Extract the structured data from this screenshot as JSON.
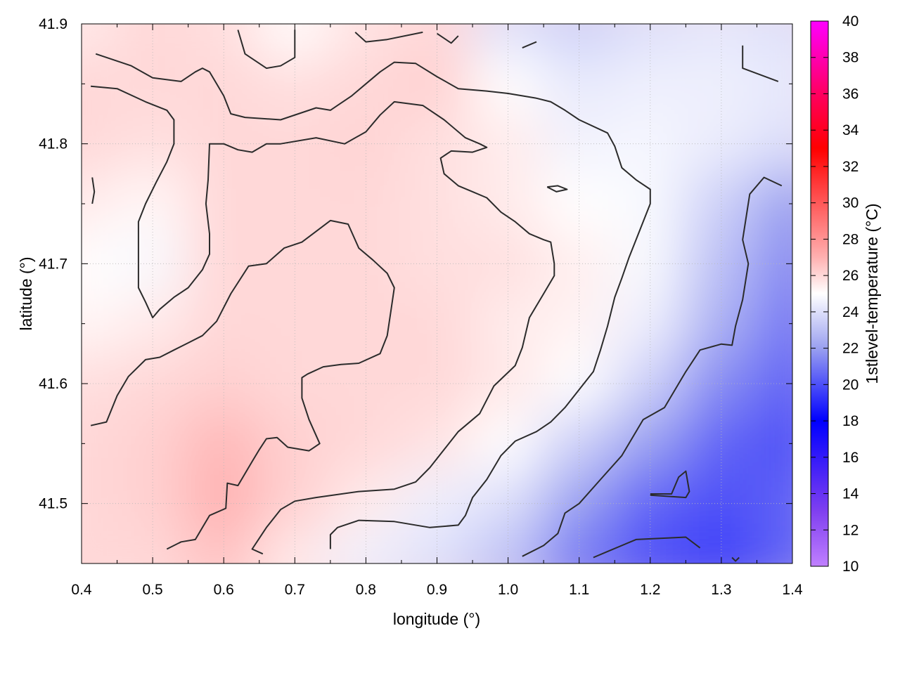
{
  "chart_data": {
    "type": "heatmap",
    "title": "",
    "xlabel": "longitude (°)",
    "ylabel": "latitude (°)",
    "colorbar_label": "1stlevel-temperature (°C)",
    "xlim": [
      0.4,
      1.4
    ],
    "ylim": [
      41.45,
      41.9
    ],
    "x_ticks": [
      0.4,
      0.5,
      0.6,
      0.7,
      0.8,
      0.9,
      1.0,
      1.1,
      1.2,
      1.3,
      1.4
    ],
    "x_tick_labels": [
      "0.4",
      "0.5",
      "0.6",
      "0.7",
      "0.8",
      "0.9",
      "1.0",
      "1.1",
      "1.2",
      "1.3",
      "1.4"
    ],
    "y_ticks": [
      41.5,
      41.6,
      41.7,
      41.8,
      41.9
    ],
    "y_tick_labels": [
      "41.5",
      "41.6",
      "41.7",
      "41.8",
      "41.9"
    ],
    "colorbar_range": [
      10,
      40
    ],
    "colorbar_ticks": [
      10,
      12,
      14,
      16,
      18,
      20,
      22,
      24,
      26,
      28,
      30,
      32,
      34,
      36,
      38,
      40
    ],
    "colorbar_tick_labels": [
      "10",
      "12",
      "14",
      "16",
      "18",
      "20",
      "22",
      "24",
      "26",
      "28",
      "30",
      "32",
      "34",
      "36",
      "38",
      "40"
    ],
    "colorscale": [
      {
        "value": 10,
        "color": "#c080ff"
      },
      {
        "value": 13,
        "color": "#8040f0"
      },
      {
        "value": 18,
        "color": "#0000ff"
      },
      {
        "value": 22,
        "color": "#9aa0f0"
      },
      {
        "value": 25,
        "color": "#ffffff"
      },
      {
        "value": 27,
        "color": "#ffb0b0"
      },
      {
        "value": 33,
        "color": "#ff0000"
      },
      {
        "value": 36,
        "color": "#ff0060"
      },
      {
        "value": 40,
        "color": "#ff00ff"
      }
    ],
    "grid": true,
    "temperature_field": {
      "x_centers": [
        0.4,
        0.5,
        0.6,
        0.7,
        0.8,
        0.9,
        1.0,
        1.1,
        1.2,
        1.3,
        1.4
      ],
      "y_centers": [
        41.9,
        41.85,
        41.8,
        41.75,
        41.7,
        41.65,
        41.6,
        41.55,
        41.5,
        41.45
      ],
      "values": [
        [
          25.5,
          26.0,
          25.8,
          25.0,
          25.7,
          26.0,
          24.0,
          23.5,
          24.0,
          24.2,
          24.0
        ],
        [
          26.0,
          26.0,
          26.0,
          25.8,
          26.0,
          26.2,
          25.0,
          24.3,
          24.5,
          24.5,
          24.3
        ],
        [
          26.0,
          25.8,
          26.0,
          26.0,
          26.1,
          25.8,
          25.5,
          24.6,
          24.7,
          24.4,
          24.0
        ],
        [
          25.5,
          25.2,
          26.0,
          26.0,
          26.0,
          25.8,
          25.5,
          25.0,
          24.8,
          23.5,
          22.0
        ],
        [
          25.0,
          24.8,
          26.0,
          26.0,
          26.0,
          25.8,
          25.8,
          25.4,
          24.8,
          23.0,
          21.5
        ],
        [
          25.2,
          25.5,
          26.0,
          26.0,
          26.0,
          26.0,
          25.5,
          25.3,
          24.5,
          22.5,
          21.0
        ],
        [
          25.8,
          26.0,
          26.2,
          26.0,
          26.0,
          26.0,
          25.6,
          25.0,
          23.5,
          21.5,
          20.5
        ],
        [
          26.0,
          26.2,
          26.8,
          26.2,
          26.0,
          25.7,
          25.0,
          23.5,
          22.0,
          20.5,
          20.0
        ],
        [
          26.0,
          26.2,
          27.0,
          26.2,
          25.5,
          24.5,
          24.0,
          22.0,
          20.5,
          20.0,
          20.5
        ],
        [
          26.0,
          26.0,
          26.5,
          25.5,
          24.5,
          24.0,
          23.0,
          21.0,
          20.0,
          19.5,
          20.5
        ]
      ]
    },
    "contour_lines": [
      [
        [
          0.42,
          41.875
        ],
        [
          0.47,
          41.865
        ],
        [
          0.5,
          41.855
        ],
        [
          0.54,
          41.852
        ],
        [
          0.56,
          41.86
        ],
        [
          0.57,
          41.863
        ],
        [
          0.58,
          41.86
        ],
        [
          0.59,
          41.85
        ],
        [
          0.6,
          41.84
        ],
        [
          0.61,
          41.825
        ],
        [
          0.63,
          41.822
        ],
        [
          0.68,
          41.82
        ],
        [
          0.73,
          41.83
        ],
        [
          0.75,
          41.828
        ],
        [
          0.76,
          41.832
        ],
        [
          0.78,
          41.84
        ],
        [
          0.8,
          41.85
        ],
        [
          0.82,
          41.86
        ],
        [
          0.84,
          41.868
        ],
        [
          0.87,
          41.867
        ],
        [
          0.9,
          41.856
        ],
        [
          0.93,
          41.846
        ],
        [
          0.97,
          41.844
        ],
        [
          1.0,
          41.842
        ],
        [
          1.02,
          41.84
        ],
        [
          1.04,
          41.838
        ],
        [
          1.06,
          41.835
        ],
        [
          1.08,
          41.828
        ],
        [
          1.1,
          41.82
        ],
        [
          1.14,
          41.809
        ],
        [
          1.15,
          41.798
        ],
        [
          1.16,
          41.78
        ],
        [
          1.18,
          41.77
        ],
        [
          1.2,
          41.762
        ],
        [
          1.2,
          41.75
        ],
        [
          1.19,
          41.735
        ],
        [
          1.18,
          41.72
        ],
        [
          1.17,
          41.705
        ],
        [
          1.16,
          41.688
        ],
        [
          1.15,
          41.672
        ],
        [
          1.14,
          41.648
        ],
        [
          1.13,
          41.628
        ],
        [
          1.12,
          41.61
        ],
        [
          1.1,
          41.595
        ],
        [
          1.08,
          41.58
        ],
        [
          1.06,
          41.568
        ],
        [
          1.04,
          41.56
        ],
        [
          1.01,
          41.552
        ],
        [
          0.99,
          41.54
        ],
        [
          0.98,
          41.53
        ],
        [
          0.97,
          41.52
        ],
        [
          0.95,
          41.505
        ],
        [
          0.94,
          41.49
        ],
        [
          0.93,
          41.482
        ],
        [
          0.89,
          41.48
        ],
        [
          0.84,
          41.485
        ],
        [
          0.79,
          41.486
        ],
        [
          0.76,
          41.48
        ],
        [
          0.75,
          41.474
        ],
        [
          0.75,
          41.462
        ]
      ],
      [
        [
          0.413,
          41.565
        ],
        [
          0.435,
          41.568
        ],
        [
          0.45,
          41.59
        ],
        [
          0.466,
          41.606
        ],
        [
          0.49,
          41.62
        ],
        [
          0.51,
          41.622
        ],
        [
          0.53,
          41.628
        ],
        [
          0.55,
          41.634
        ],
        [
          0.57,
          41.64
        ],
        [
          0.59,
          41.652
        ],
        [
          0.61,
          41.675
        ],
        [
          0.635,
          41.698
        ],
        [
          0.66,
          41.7
        ],
        [
          0.685,
          41.713
        ],
        [
          0.71,
          41.718
        ],
        [
          0.73,
          41.727
        ],
        [
          0.75,
          41.736
        ],
        [
          0.775,
          41.733
        ],
        [
          0.79,
          41.713
        ],
        [
          0.81,
          41.703
        ],
        [
          0.83,
          41.692
        ],
        [
          0.84,
          41.68
        ],
        [
          0.835,
          41.66
        ],
        [
          0.83,
          41.64
        ],
        [
          0.82,
          41.625
        ],
        [
          0.79,
          41.617
        ],
        [
          0.765,
          41.616
        ],
        [
          0.74,
          41.614
        ],
        [
          0.718,
          41.608
        ],
        [
          0.71,
          41.605
        ],
        [
          0.71,
          41.588
        ],
        [
          0.72,
          41.57
        ],
        [
          0.735,
          41.55
        ],
        [
          0.725,
          41.546
        ],
        [
          0.72,
          41.544
        ],
        [
          0.69,
          41.547
        ],
        [
          0.675,
          41.555
        ],
        [
          0.66,
          41.554
        ],
        [
          0.65,
          41.545
        ],
        [
          0.64,
          41.535
        ],
        [
          0.63,
          41.525
        ],
        [
          0.62,
          41.515
        ],
        [
          0.605,
          41.517
        ],
        [
          0.603,
          41.496
        ],
        [
          0.58,
          41.49
        ],
        [
          0.57,
          41.48
        ],
        [
          0.56,
          41.47
        ],
        [
          0.54,
          41.468
        ],
        [
          0.52,
          41.462
        ]
      ],
      [
        [
          0.413,
          41.848
        ],
        [
          0.45,
          41.846
        ],
        [
          0.49,
          41.835
        ],
        [
          0.52,
          41.828
        ],
        [
          0.53,
          41.82
        ],
        [
          0.53,
          41.8
        ],
        [
          0.52,
          41.785
        ],
        [
          0.505,
          41.768
        ],
        [
          0.49,
          41.75
        ],
        [
          0.48,
          41.735
        ],
        [
          0.48,
          41.713
        ],
        [
          0.48,
          41.69
        ],
        [
          0.48,
          41.68
        ],
        [
          0.49,
          41.668
        ],
        [
          0.5,
          41.655
        ],
        [
          0.51,
          41.662
        ],
        [
          0.53,
          41.672
        ],
        [
          0.55,
          41.68
        ],
        [
          0.57,
          41.695
        ],
        [
          0.58,
          41.708
        ],
        [
          0.58,
          41.725
        ],
        [
          0.575,
          41.75
        ],
        [
          0.578,
          41.77
        ],
        [
          0.58,
          41.8
        ],
        [
          0.6,
          41.8
        ],
        [
          0.62,
          41.795
        ],
        [
          0.64,
          41.793
        ],
        [
          0.66,
          41.8
        ],
        [
          0.68,
          41.8
        ],
        [
          0.73,
          41.805
        ],
        [
          0.77,
          41.8
        ],
        [
          0.8,
          41.81
        ],
        [
          0.82,
          41.824
        ],
        [
          0.84,
          41.835
        ],
        [
          0.88,
          41.832
        ],
        [
          0.91,
          41.82
        ],
        [
          0.94,
          41.805
        ],
        [
          0.96,
          41.8
        ],
        [
          0.97,
          41.797
        ],
        [
          0.95,
          41.793
        ],
        [
          0.92,
          41.794
        ],
        [
          0.905,
          41.788
        ],
        [
          0.91,
          41.775
        ],
        [
          0.93,
          41.765
        ],
        [
          0.95,
          41.76
        ],
        [
          0.97,
          41.755
        ],
        [
          0.99,
          41.743
        ],
        [
          1.01,
          41.735
        ],
        [
          1.03,
          41.725
        ],
        [
          1.05,
          41.72
        ],
        [
          1.06,
          41.718
        ],
        [
          1.065,
          41.7
        ],
        [
          1.065,
          41.69
        ],
        [
          1.05,
          41.675
        ],
        [
          1.03,
          41.655
        ],
        [
          1.02,
          41.63
        ],
        [
          1.01,
          41.615
        ],
        [
          0.98,
          41.598
        ],
        [
          0.96,
          41.575
        ],
        [
          0.93,
          41.56
        ],
        [
          0.91,
          41.545
        ],
        [
          0.89,
          41.53
        ],
        [
          0.87,
          41.518
        ],
        [
          0.84,
          41.512
        ],
        [
          0.79,
          41.51
        ],
        [
          0.73,
          41.505
        ],
        [
          0.7,
          41.502
        ],
        [
          0.68,
          41.495
        ],
        [
          0.66,
          41.48
        ],
        [
          0.64,
          41.462
        ],
        [
          0.655,
          41.458
        ]
      ],
      [
        [
          0.62,
          41.895
        ],
        [
          0.63,
          41.875
        ],
        [
          0.66,
          41.863
        ],
        [
          0.68,
          41.865
        ],
        [
          0.7,
          41.872
        ],
        [
          0.7,
          41.895
        ]
      ],
      [
        [
          0.785,
          41.893
        ],
        [
          0.8,
          41.885
        ],
        [
          0.83,
          41.887
        ],
        [
          0.88,
          41.893
        ]
      ],
      [
        [
          0.9,
          41.892
        ],
        [
          0.92,
          41.884
        ],
        [
          0.93,
          41.89
        ]
      ],
      [
        [
          1.02,
          41.88
        ],
        [
          1.04,
          41.885
        ]
      ],
      [
        [
          1.33,
          41.882
        ],
        [
          1.33,
          41.863
        ],
        [
          1.38,
          41.852
        ]
      ],
      [
        [
          0.415,
          41.772
        ],
        [
          0.418,
          41.76
        ],
        [
          0.415,
          41.75
        ]
      ],
      [
        [
          1.055,
          41.764
        ],
        [
          1.07,
          41.765
        ],
        [
          1.083,
          41.762
        ],
        [
          1.068,
          41.76
        ],
        [
          1.055,
          41.764
        ]
      ],
      [
        [
          1.385,
          41.765
        ],
        [
          1.36,
          41.772
        ],
        [
          1.34,
          41.758
        ],
        [
          1.33,
          41.72
        ],
        [
          1.338,
          41.7
        ],
        [
          1.33,
          41.67
        ],
        [
          1.32,
          41.648
        ],
        [
          1.315,
          41.632
        ],
        [
          1.3,
          41.633
        ],
        [
          1.27,
          41.628
        ],
        [
          1.25,
          41.61
        ],
        [
          1.24,
          41.6
        ],
        [
          1.22,
          41.58
        ],
        [
          1.19,
          41.57
        ],
        [
          1.16,
          41.54
        ],
        [
          1.13,
          41.52
        ],
        [
          1.1,
          41.5
        ],
        [
          1.08,
          41.492
        ],
        [
          1.07,
          41.475
        ],
        [
          1.05,
          41.465
        ],
        [
          1.02,
          41.456
        ]
      ],
      [
        [
          1.12,
          41.455
        ],
        [
          1.14,
          41.46
        ],
        [
          1.18,
          41.47
        ],
        [
          1.25,
          41.472
        ],
        [
          1.27,
          41.463
        ]
      ],
      [
        [
          1.2,
          41.508
        ],
        [
          1.23,
          41.508
        ],
        [
          1.24,
          41.522
        ],
        [
          1.25,
          41.527
        ],
        [
          1.255,
          41.51
        ],
        [
          1.25,
          41.505
        ],
        [
          1.2,
          41.507
        ]
      ],
      [
        [
          1.315,
          41.455
        ],
        [
          1.32,
          41.452
        ],
        [
          1.325,
          41.455
        ]
      ]
    ]
  }
}
